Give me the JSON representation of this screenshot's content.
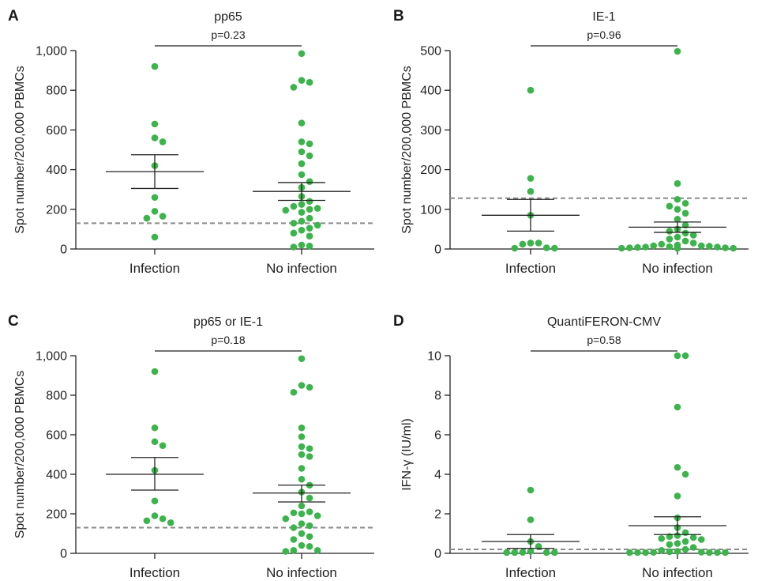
{
  "chart_data": [
    {
      "type": "scatter",
      "panel": "A",
      "title": "pp65",
      "ylabel": "Spot number/200,000 PBMCs",
      "categories": [
        "Infection",
        "No infection"
      ],
      "ylim": [
        0,
        1000
      ],
      "yticks": [
        0,
        200,
        400,
        600,
        800,
        1000
      ],
      "ytick_labels": [
        "0",
        "200",
        "400",
        "600",
        "800",
        "1,000"
      ],
      "threshold": 130,
      "pvalue": "p=0.23",
      "series": [
        {
          "values": [
            920,
            630,
            560,
            540,
            420,
            260,
            190,
            165,
            155,
            60
          ],
          "mean": 390,
          "sem_low": 305,
          "sem_high": 475
        },
        {
          "values": [
            985,
            850,
            840,
            815,
            635,
            540,
            530,
            490,
            470,
            430,
            375,
            340,
            310,
            265,
            240,
            225,
            215,
            205,
            200,
            195,
            185,
            155,
            140,
            130,
            120,
            105,
            95,
            80,
            65,
            20,
            15,
            10
          ],
          "mean": 290,
          "sem_low": 245,
          "sem_high": 335
        }
      ]
    },
    {
      "type": "scatter",
      "panel": "B",
      "title": "IE-1",
      "ylabel": "Spot number/200,000 PBMCs",
      "categories": [
        "Infection",
        "No infection"
      ],
      "ylim": [
        0,
        500
      ],
      "yticks": [
        0,
        100,
        200,
        300,
        400,
        500
      ],
      "ytick_labels": [
        "0",
        "100",
        "200",
        "300",
        "400",
        "500"
      ],
      "threshold": 128,
      "pvalue": "p=0.96",
      "series": [
        {
          "values": [
            400,
            178,
            145,
            85,
            15,
            15,
            12,
            3,
            2,
            0
          ],
          "mean": 85,
          "sem_low": 45,
          "sem_high": 125
        },
        {
          "values": [
            498,
            165,
            125,
            115,
            108,
            100,
            90,
            75,
            60,
            50,
            45,
            40,
            35,
            30,
            25,
            20,
            15,
            12,
            10,
            8,
            8,
            7,
            6,
            5,
            5,
            4,
            3,
            3,
            2,
            2,
            1,
            1
          ],
          "mean": 55,
          "sem_low": 42,
          "sem_high": 68
        }
      ]
    },
    {
      "type": "scatter",
      "panel": "C",
      "title": "pp65 or IE-1",
      "ylabel": "Spot number/200,000 PBMCs",
      "categories": [
        "Infection",
        "No infection"
      ],
      "ylim": [
        0,
        1000
      ],
      "yticks": [
        0,
        200,
        400,
        600,
        800,
        1000
      ],
      "ytick_labels": [
        "0",
        "200",
        "400",
        "600",
        "800",
        "1,000"
      ],
      "threshold": 130,
      "pvalue": "p=0.18",
      "series": [
        {
          "values": [
            920,
            635,
            565,
            545,
            420,
            265,
            190,
            175,
            165,
            155
          ],
          "mean": 400,
          "sem_low": 320,
          "sem_high": 485
        },
        {
          "values": [
            985,
            850,
            840,
            815,
            635,
            590,
            540,
            530,
            500,
            490,
            430,
            375,
            345,
            310,
            280,
            240,
            210,
            205,
            200,
            190,
            175,
            150,
            140,
            130,
            100,
            85,
            70,
            40,
            35,
            15,
            15,
            10
          ],
          "mean": 305,
          "sem_low": 260,
          "sem_high": 345
        }
      ]
    },
    {
      "type": "scatter",
      "panel": "D",
      "title": "QuantiFERON-CMV",
      "ylabel": "IFN-γ (IU/ml)",
      "categories": [
        "Infection",
        "No infection"
      ],
      "ylim": [
        0,
        10
      ],
      "yticks": [
        0,
        2,
        4,
        6,
        8,
        10
      ],
      "ytick_labels": [
        "0",
        "2",
        "4",
        "6",
        "8",
        "10"
      ],
      "threshold": 0.2,
      "pvalue": "p=0.58",
      "series": [
        {
          "values": [
            3.2,
            1.7,
            0.6,
            0.35,
            0.1,
            0.05,
            0.02,
            0.02,
            0.01,
            0.01
          ],
          "mean": 0.6,
          "sem_low": 0.25,
          "sem_high": 0.95
        },
        {
          "values": [
            10,
            10,
            7.4,
            4.35,
            4.0,
            2.9,
            1.8,
            1.3,
            1.05,
            0.9,
            0.85,
            0.8,
            0.75,
            0.7,
            0.6,
            0.5,
            0.45,
            0.3,
            0.2,
            0.15,
            0.1,
            0.08,
            0.06,
            0.05,
            0.04,
            0.03,
            0.02,
            0.02,
            0.01,
            0.01
          ],
          "mean": 1.4,
          "sem_low": 0.95,
          "sem_high": 1.85
        }
      ]
    }
  ],
  "colors": {
    "points": "#3cb44b",
    "threshold": "#8a8a8a",
    "ink": "#222222"
  }
}
